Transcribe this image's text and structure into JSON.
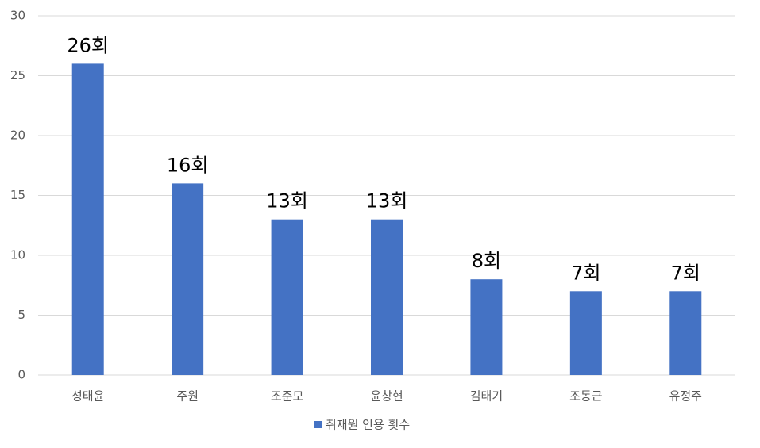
{
  "chart_data": {
    "type": "bar",
    "categories": [
      "성태윤",
      "주원",
      "조준모",
      "윤창현",
      "김태기",
      "조동근",
      "유정주"
    ],
    "series": [
      {
        "name": "취재원 인용 횟수",
        "color": "#4472c4",
        "values": [
          26,
          16,
          13,
          13,
          8,
          7,
          7
        ],
        "value_labels": [
          "26회",
          "16회",
          "13회",
          "13회",
          "8회",
          "7회",
          "7회"
        ]
      }
    ],
    "ylim": [
      0,
      30
    ],
    "yticks": [
      0,
      5,
      10,
      15,
      20,
      25,
      30
    ],
    "grid": true,
    "legend": "bottom"
  }
}
